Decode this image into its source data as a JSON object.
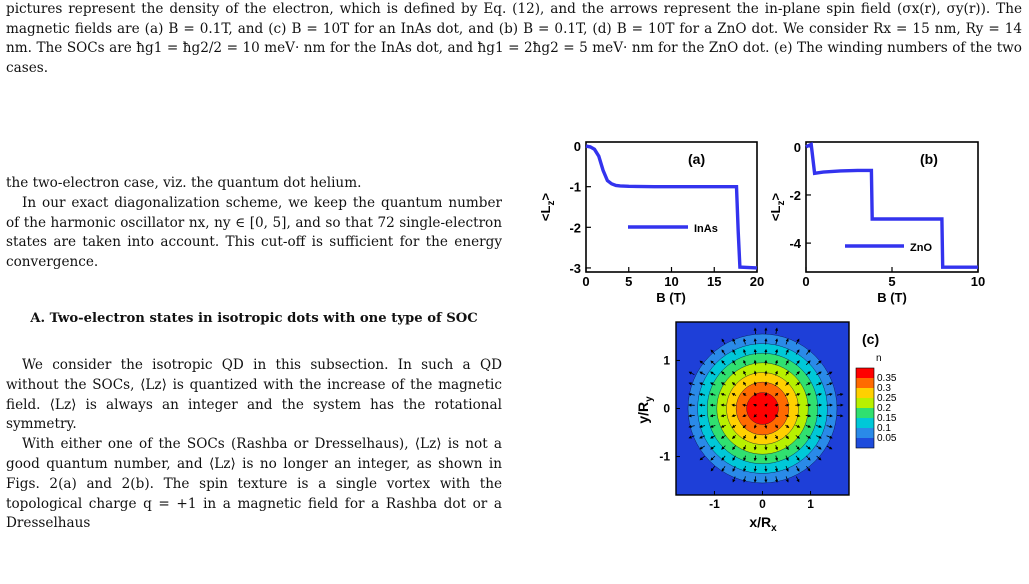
{
  "caption": {
    "text": "pictures represent the density of the electron, which is defined by Eq. (12), and the arrows represent the in-plane spin field (σx(r), σy(r)). The magnetic fields are (a) B = 0.1T, and (c) B = 10T for an InAs dot, and (b) B = 0.1T, (d) B = 10T for a ZnO dot. We consider Rx = 15 nm, Ry = 14 nm. The SOCs are ħg1 = ħg2/2 = 10 meV· nm for the InAs dot, and ħg1 = 2ħg2 = 5 meV· nm for the ZnO dot. (e) The winding numbers of the two cases."
  },
  "body": {
    "p1": "the two-electron case, viz. the quantum dot helium.",
    "p2": "In our exact diagonalization scheme, we keep the quantum number of the harmonic oscillator nx, ny ∈ [0, 5], and so that 72 single-electron states are taken into account. This cut-off is sufficient for the energy convergence.",
    "section_num": "A.",
    "section_title": "Two-electron states in isotropic dots with one type of SOC",
    "p3": "We consider the isotropic QD in this subsection. In such a QD without the SOCs, ⟨Lz⟩ is quantized with the increase of the magnetic field. ⟨Lz⟩ is always an integer and the system has the rotational symmetry.",
    "p4": "With either one of the SOCs (Rashba or Dresselhaus), ⟨Lz⟩ is not a good quantum number, and ⟨Lz⟩ is no longer an integer, as shown in Figs. 2(a) and 2(b). The spin texture is a single vortex with the topological charge q = +1 in a magnetic field for a Rashba dot or a Dresselhaus"
  },
  "chart_data": [
    {
      "type": "line",
      "panel": "(a)",
      "xlabel": "B (T)",
      "ylabel": "<Lz>",
      "xlim": [
        0,
        20
      ],
      "ylim": [
        -3.1,
        0.1
      ],
      "xticks": [
        "0",
        "5",
        "10",
        "15",
        "20"
      ],
      "yticks": [
        "0",
        "-1",
        "-2",
        "-3"
      ],
      "series": [
        {
          "name": "InAs",
          "color": "#3333ee",
          "x": [
            0,
            0.5,
            1,
            1.5,
            2,
            2.5,
            3,
            3.5,
            4,
            5,
            8,
            12,
            15,
            17.6,
            17.8,
            18,
            20
          ],
          "y": [
            0,
            -0.02,
            -0.08,
            -0.25,
            -0.6,
            -0.85,
            -0.93,
            -0.97,
            -0.98,
            -0.99,
            -1.0,
            -1.0,
            -1.0,
            -1.0,
            -2.1,
            -2.98,
            -3.0
          ]
        }
      ]
    },
    {
      "type": "line",
      "panel": "(b)",
      "xlabel": "B (T)",
      "ylabel": "<Lz>",
      "xlim": [
        0,
        10
      ],
      "ylim": [
        -5.2,
        0.2
      ],
      "xticks": [
        "0",
        "5",
        "10"
      ],
      "yticks": [
        "0",
        "-2",
        "-4"
      ],
      "series": [
        {
          "name": "ZnO",
          "color": "#3333ee",
          "x": [
            0,
            0.3,
            0.5,
            1,
            2,
            3,
            3.8,
            3.85,
            5,
            7,
            7.9,
            7.95,
            10
          ],
          "y": [
            0,
            0.1,
            -1.1,
            -1.05,
            -1.0,
            -0.98,
            -0.98,
            -3.0,
            -3.0,
            -3.0,
            -3.0,
            -5.0,
            -5.0
          ]
        }
      ]
    },
    {
      "type": "heatmap",
      "panel": "(c)",
      "xlabel": "x/Rx",
      "ylabel": "y/Ry",
      "xlim": [
        -1.8,
        1.8
      ],
      "ylim": [
        -1.8,
        1.8
      ],
      "xticks": [
        "-1",
        "0",
        "1"
      ],
      "yticks": [
        "-1",
        "0",
        "1"
      ],
      "colorbar_title": "n",
      "colorbar_levels": [
        "0.35",
        "0.3",
        "0.25",
        "0.2",
        "0.15",
        "0.1",
        "0.05"
      ],
      "colorbar_colors": [
        "#ff0000",
        "#ff6a00",
        "#ffd000",
        "#b8f000",
        "#30e070",
        "#00c8d8",
        "#2a8ae8",
        "#1e4cdc"
      ],
      "field": "radial density peaked at origin with in-plane spin arrows"
    }
  ]
}
